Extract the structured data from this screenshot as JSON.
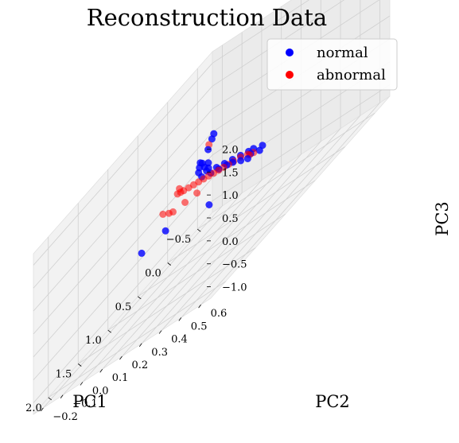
{
  "chart_data": {
    "type": "scatter",
    "projection": "3d",
    "title": "Reconstruction Data",
    "xlabel": "PC1",
    "ylabel": "PC2",
    "zlabel": "PC3",
    "xlim": [
      -0.75,
      2.25
    ],
    "ylim": [
      -0.25,
      0.65
    ],
    "zlim": [
      -1.25,
      2.25
    ],
    "xticks": [
      "−0.5",
      "0.0",
      "0.5",
      "1.0",
      "1.5",
      "2.0"
    ],
    "yticks": [
      "−0.2",
      "−0.1",
      "0.0",
      "0.1",
      "0.2",
      "0.3",
      "0.4",
      "0.5",
      "0.6"
    ],
    "zticks": [
      "−1.0",
      "−0.5",
      "0.0",
      "0.5",
      "1.0",
      "1.5",
      "2.0"
    ],
    "grid": true,
    "legend_position": "top-right",
    "series": [
      {
        "name": "normal",
        "color": "#0000ff",
        "points": [
          [
            -0.55,
            0.05,
            -0.45
          ],
          [
            -0.5,
            0.08,
            -0.35
          ],
          [
            -0.45,
            0.02,
            -0.4
          ],
          [
            -0.4,
            0.05,
            -0.3
          ],
          [
            -0.35,
            0.08,
            -0.2
          ],
          [
            -0.3,
            0.03,
            -0.25
          ],
          [
            -0.2,
            0.1,
            -0.1
          ],
          [
            -0.1,
            0.05,
            -0.05
          ],
          [
            0.0,
            0.12,
            0.05
          ],
          [
            0.1,
            0.08,
            0.1
          ],
          [
            0.2,
            0.14,
            0.2
          ],
          [
            0.3,
            0.1,
            0.25
          ],
          [
            0.4,
            0.16,
            0.35
          ],
          [
            0.5,
            0.12,
            0.4
          ],
          [
            0.6,
            0.18,
            0.5
          ],
          [
            0.75,
            0.15,
            0.6
          ],
          [
            0.9,
            0.22,
            0.75
          ],
          [
            1.0,
            0.26,
            0.85
          ],
          [
            1.1,
            0.24,
            0.95
          ],
          [
            1.2,
            0.3,
            1.05
          ],
          [
            1.35,
            0.32,
            1.2
          ],
          [
            1.5,
            0.38,
            1.35
          ],
          [
            1.6,
            0.4,
            1.45
          ],
          [
            1.8,
            0.5,
            1.75
          ],
          [
            2.0,
            0.58,
            2.05
          ],
          [
            2.1,
            0.62,
            2.2
          ],
          [
            0.2,
            -0.2,
            -0.4
          ],
          [
            0.6,
            -0.2,
            -0.3
          ],
          [
            -0.2,
            -0.1,
            -0.7
          ],
          [
            1.3,
            0.35,
            1.15
          ]
        ]
      },
      {
        "name": "abnormal",
        "color": "#ff0000",
        "points": [
          [
            -0.45,
            0.05,
            -0.35
          ],
          [
            -0.35,
            0.06,
            -0.28
          ],
          [
            -0.25,
            0.08,
            -0.18
          ],
          [
            -0.1,
            0.09,
            -0.05
          ],
          [
            0.05,
            0.1,
            0.05
          ],
          [
            0.2,
            0.12,
            0.15
          ],
          [
            0.35,
            0.14,
            0.25
          ],
          [
            0.5,
            0.16,
            0.35
          ],
          [
            0.65,
            0.18,
            0.45
          ],
          [
            0.8,
            0.2,
            0.55
          ],
          [
            0.95,
            0.22,
            0.65
          ],
          [
            1.1,
            0.24,
            0.75
          ],
          [
            1.25,
            0.26,
            0.85
          ],
          [
            1.4,
            0.28,
            0.95
          ],
          [
            1.55,
            0.3,
            1.05
          ],
          [
            1.7,
            0.33,
            1.15
          ],
          [
            1.85,
            0.36,
            1.25
          ],
          [
            1.95,
            0.4,
            1.4
          ],
          [
            2.05,
            0.58,
            2.0
          ],
          [
            0.4,
            0.02,
            0.1
          ],
          [
            0.7,
            0.05,
            0.25
          ],
          [
            1.0,
            0.08,
            0.4
          ],
          [
            1.2,
            0.12,
            0.55
          ],
          [
            1.5,
            0.18,
            0.8
          ]
        ]
      }
    ]
  }
}
